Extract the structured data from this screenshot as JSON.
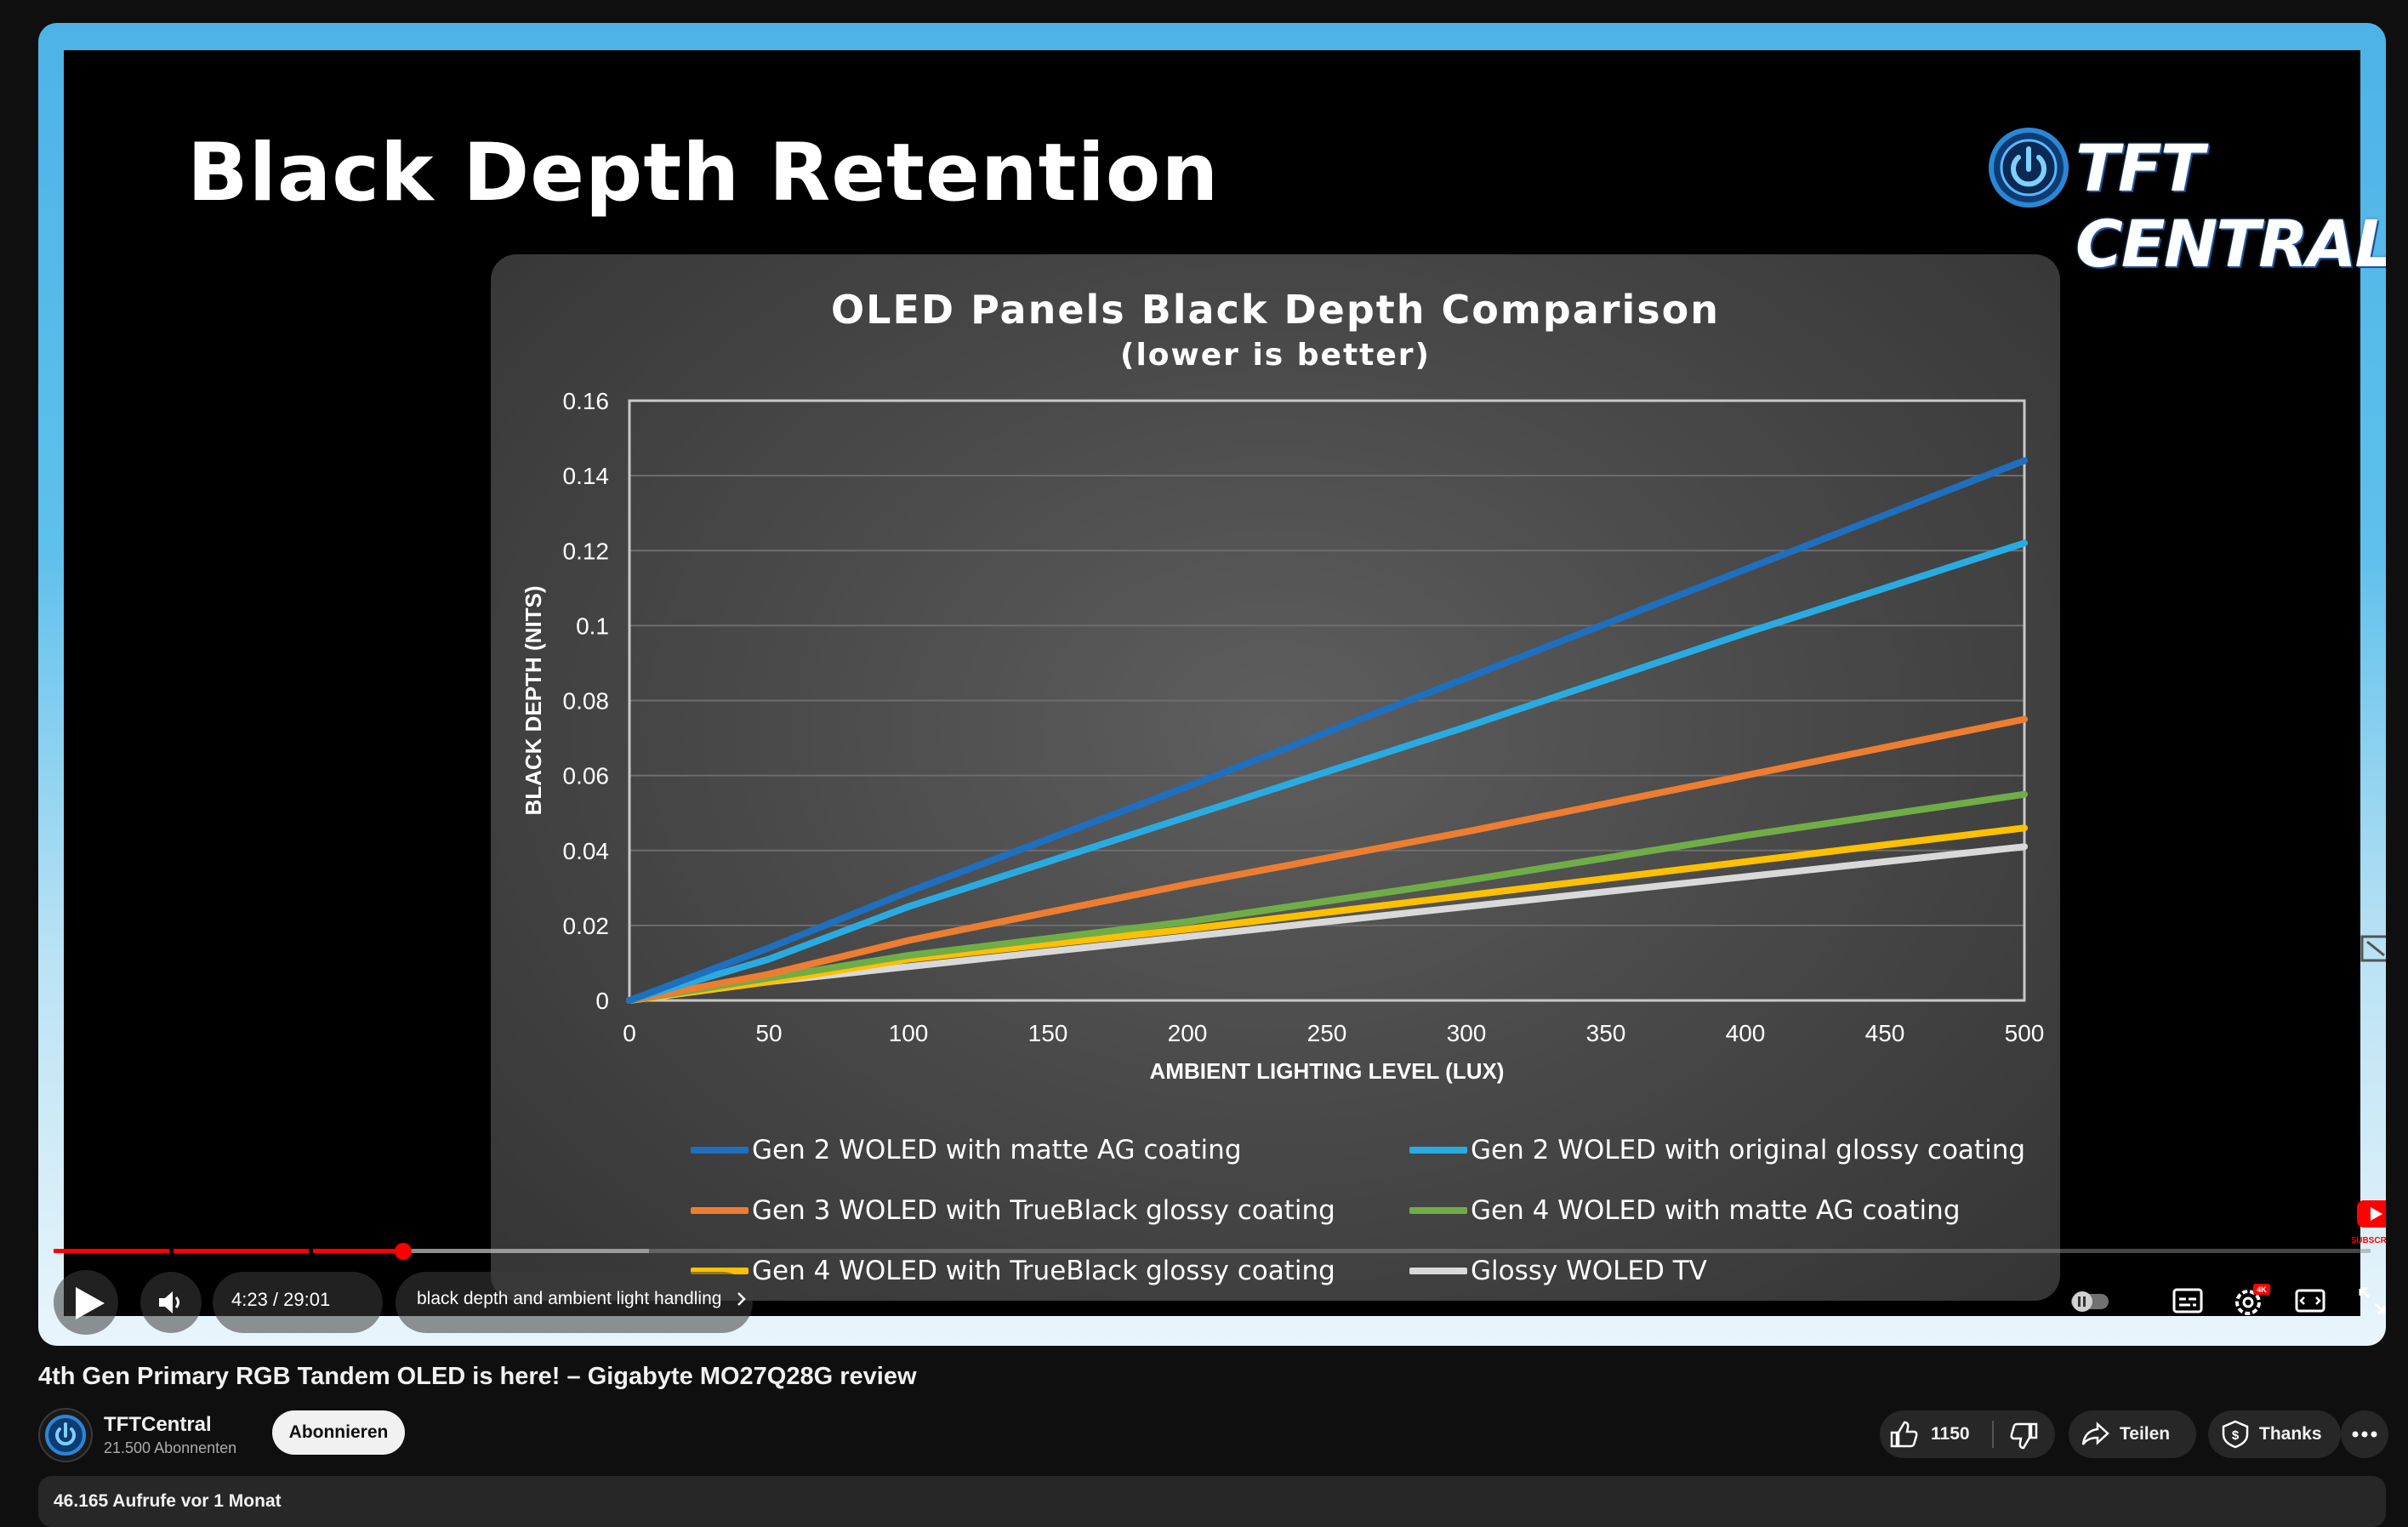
{
  "slide": {
    "title": "Black Depth Retention",
    "logo_text": "TFT CENTRAL"
  },
  "chart_data": {
    "type": "line",
    "title": "OLED Panels Black Depth Comparison",
    "subtitle": "(lower is better)",
    "xlabel": "AMBIENT LIGHTING LEVEL (LUX)",
    "ylabel": "BLACK DEPTH (NITS)",
    "xlim": [
      0,
      500
    ],
    "ylim": [
      0,
      0.16
    ],
    "x_ticks": [
      "0",
      "50",
      "100",
      "150",
      "200",
      "250",
      "300",
      "350",
      "400",
      "450",
      "500"
    ],
    "y_ticks": [
      "0",
      "0.02",
      "0.04",
      "0.06",
      "0.08",
      "0.1",
      "0.12",
      "0.14",
      "0.16"
    ],
    "grid": true,
    "legend_position": "bottom",
    "series": [
      {
        "name": "Gen 2 WOLED with matte AG coating",
        "color": "#1f6fbf",
        "points": [
          [
            0,
            0
          ],
          [
            50,
            0.014
          ],
          [
            100,
            0.029
          ],
          [
            200,
            0.057
          ],
          [
            300,
            0.086
          ],
          [
            400,
            0.115
          ],
          [
            500,
            0.144
          ]
        ]
      },
      {
        "name": "Gen 2 WOLED with original glossy coating",
        "color": "#29abe2",
        "points": [
          [
            0,
            0
          ],
          [
            50,
            0.011
          ],
          [
            100,
            0.025
          ],
          [
            200,
            0.049
          ],
          [
            300,
            0.073
          ],
          [
            400,
            0.098
          ],
          [
            500,
            0.122
          ]
        ]
      },
      {
        "name": "Gen 3 WOLED with TrueBlack glossy coating",
        "color": "#ed7d31",
        "points": [
          [
            0,
            0
          ],
          [
            50,
            0.007
          ],
          [
            100,
            0.016
          ],
          [
            200,
            0.031
          ],
          [
            300,
            0.045
          ],
          [
            400,
            0.06
          ],
          [
            500,
            0.075
          ]
        ]
      },
      {
        "name": "Gen 4 WOLED with matte AG coating",
        "color": "#70ad47",
        "points": [
          [
            0,
            0
          ],
          [
            50,
            0.006
          ],
          [
            100,
            0.012
          ],
          [
            200,
            0.021
          ],
          [
            300,
            0.032
          ],
          [
            400,
            0.044
          ],
          [
            500,
            0.055
          ]
        ]
      },
      {
        "name": "Gen 4 WOLED with TrueBlack glossy coating",
        "color": "#ffc000",
        "points": [
          [
            0,
            0
          ],
          [
            50,
            0.005
          ],
          [
            100,
            0.011
          ],
          [
            200,
            0.019
          ],
          [
            300,
            0.028
          ],
          [
            400,
            0.037
          ],
          [
            500,
            0.046
          ]
        ]
      },
      {
        "name": "Glossy WOLED TV",
        "color": "#d9d9d9",
        "points": [
          [
            0,
            0
          ],
          [
            50,
            0.005
          ],
          [
            100,
            0.009
          ],
          [
            200,
            0.017
          ],
          [
            300,
            0.025
          ],
          [
            400,
            0.033
          ],
          [
            500,
            0.041
          ]
        ]
      }
    ]
  },
  "player": {
    "time": "4:23 / 29:01",
    "chapter": "black depth and ambient light handling",
    "progress_fraction": 0.151
  },
  "video": {
    "title": "4th Gen Primary RGB Tandem OLED is here! – Gigabyte MO27Q28G review",
    "channel_name": "TFTCentral",
    "subscribers": "21.500 Abonnenten",
    "subscribe_label": "Abonnieren",
    "likes": "1150",
    "share_label": "Teilen",
    "thanks_label": "Thanks",
    "views": "46.165 Aufrufe  vor 1 Monat"
  },
  "colors": {
    "accent": "#ff0000",
    "background": "#0f0f0f",
    "pill": "#272727"
  },
  "icons": [
    "info-icon",
    "play-icon",
    "volume-icon",
    "chevron-right-icon",
    "autoplay-toggle-icon",
    "subtitles-icon",
    "settings-icon",
    "theater-icon",
    "fullscreen-icon",
    "like-icon",
    "dislike-icon",
    "share-icon",
    "thanks-icon",
    "more-icon",
    "subscribe-watermark-icon"
  ]
}
